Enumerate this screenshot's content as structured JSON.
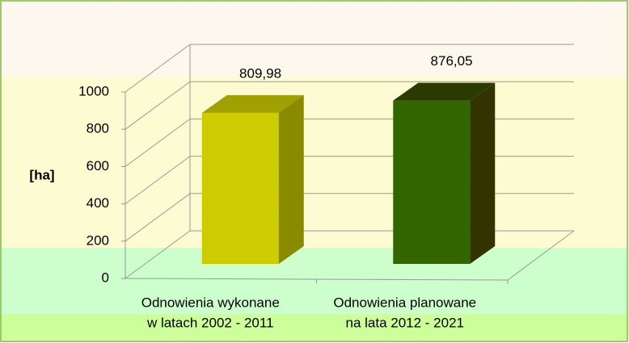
{
  "chart_data": {
    "type": "bar3d",
    "y_label": "[ha]",
    "categories": [
      [
        "Odnowienia wykonane",
        "w latach 2002 - 2011"
      ],
      [
        "Odnowienia planowane",
        "na lata 2012 - 2021"
      ]
    ],
    "values": [
      809.98,
      876.05
    ],
    "value_labels": [
      "809,98",
      "876,05"
    ],
    "colors": [
      "#cccc00",
      "#336600"
    ],
    "side_colors": [
      "#8a8a00",
      "#333300"
    ],
    "top_colors": [
      "#a0a000",
      "#2a3a00"
    ],
    "ylim": [
      0,
      1000
    ],
    "yticks": [
      0,
      200,
      400,
      600,
      800,
      1000
    ],
    "grid": true
  }
}
